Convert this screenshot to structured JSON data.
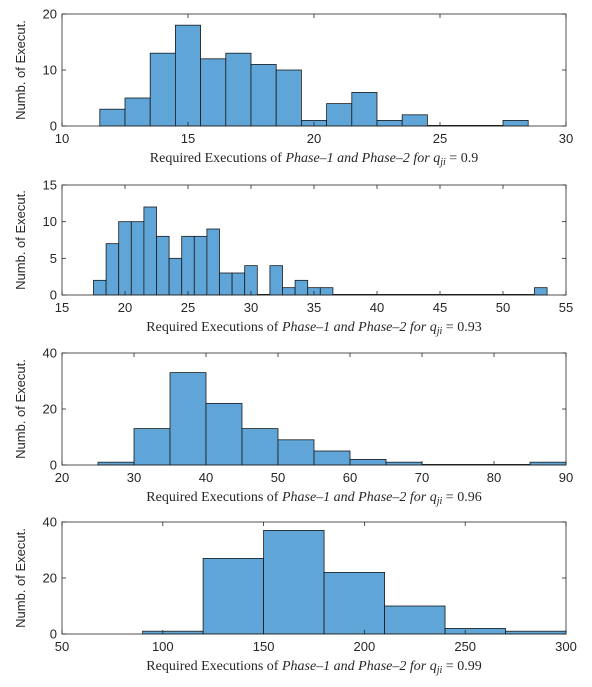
{
  "chart_data": [
    {
      "type": "histogram",
      "xlim": [
        10,
        30
      ],
      "ylim": [
        0,
        20
      ],
      "xticks": [
        "10",
        "15",
        "20",
        "25",
        "30"
      ],
      "yticks": [
        "0",
        "10",
        "20"
      ],
      "ylabel": "Numb. of Execut.",
      "xlabel": {
        "pre": "Required Executions of ",
        "italic": "Phase–1 and Phase–2 for ",
        "math": "q",
        "sub": "ji",
        "post": " = 0.9"
      },
      "bin_edges": [
        11.5,
        12.5,
        13.5,
        14.5,
        15.5,
        16.5,
        17.5,
        18.5,
        19.5,
        20.5,
        21.5,
        22.5,
        23.5,
        24.5,
        25.5,
        26.5,
        27.5,
        28.5
      ],
      "counts": [
        3,
        5,
        13,
        18,
        12,
        13,
        11,
        10,
        1,
        4,
        6,
        1,
        2,
        0,
        0,
        0,
        1
      ]
    },
    {
      "type": "histogram",
      "xlim": [
        15,
        55
      ],
      "ylim": [
        0,
        15
      ],
      "xticks": [
        "15",
        "20",
        "25",
        "30",
        "35",
        "40",
        "45",
        "50",
        "55"
      ],
      "yticks": [
        "0",
        "5",
        "10",
        "15"
      ],
      "ylabel": "Numb. of Execut.",
      "xlabel": {
        "pre": "Required Executions of ",
        "italic": "Phase–1 and Phase–2 for ",
        "math": "q",
        "sub": "ji",
        "post": " = 0.93"
      },
      "bin_edges": [
        17.5,
        18.5,
        19.5,
        20.5,
        21.5,
        22.5,
        23.5,
        24.5,
        25.5,
        26.5,
        27.5,
        28.5,
        29.5,
        30.5,
        31.5,
        32.5,
        33.5,
        34.5,
        35.5,
        36.5,
        37.5,
        38.5,
        39.5,
        40.5,
        41.5,
        42.5,
        43.5,
        44.5,
        45.5,
        46.5,
        47.5,
        48.5,
        49.5,
        50.5,
        51.5,
        52.5,
        53.5
      ],
      "counts": [
        2,
        7,
        10,
        10,
        12,
        8,
        5,
        8,
        8,
        9,
        3,
        3,
        4,
        0,
        4,
        1,
        2,
        1,
        1,
        0,
        0,
        0,
        0,
        0,
        0,
        0,
        0,
        0,
        0,
        0,
        0,
        0,
        0,
        0,
        0,
        1
      ]
    },
    {
      "type": "histogram",
      "xlim": [
        20,
        90
      ],
      "ylim": [
        0,
        40
      ],
      "xticks": [
        "20",
        "30",
        "40",
        "50",
        "60",
        "70",
        "80",
        "90"
      ],
      "yticks": [
        "0",
        "20",
        "40"
      ],
      "ylabel": "Numb. of Execut.",
      "xlabel": {
        "pre": "Required Executions of ",
        "italic": "Phase–1 and Phase–2 for ",
        "math": "q",
        "sub": "ji",
        "post": " = 0.96"
      },
      "bin_edges": [
        25,
        30,
        35,
        40,
        45,
        50,
        55,
        60,
        65,
        70,
        75,
        80,
        85,
        90
      ],
      "counts": [
        1,
        13,
        33,
        22,
        13,
        9,
        5,
        2,
        1,
        0,
        0,
        0,
        1
      ]
    },
    {
      "type": "histogram",
      "xlim": [
        50,
        300
      ],
      "ylim": [
        0,
        40
      ],
      "xticks": [
        "50",
        "100",
        "150",
        "200",
        "250",
        "300"
      ],
      "yticks": [
        "0",
        "20",
        "40"
      ],
      "ylabel": "Numb. of Execut.",
      "xlabel": {
        "pre": "Required Executions of ",
        "italic": "Phase–1 and Phase–2 for ",
        "math": "q",
        "sub": "ji",
        "post": " = 0.99"
      },
      "bin_edges": [
        90,
        120,
        150,
        180,
        210,
        240,
        270,
        300
      ],
      "counts": [
        1,
        27,
        37,
        22,
        10,
        2,
        1
      ]
    }
  ]
}
